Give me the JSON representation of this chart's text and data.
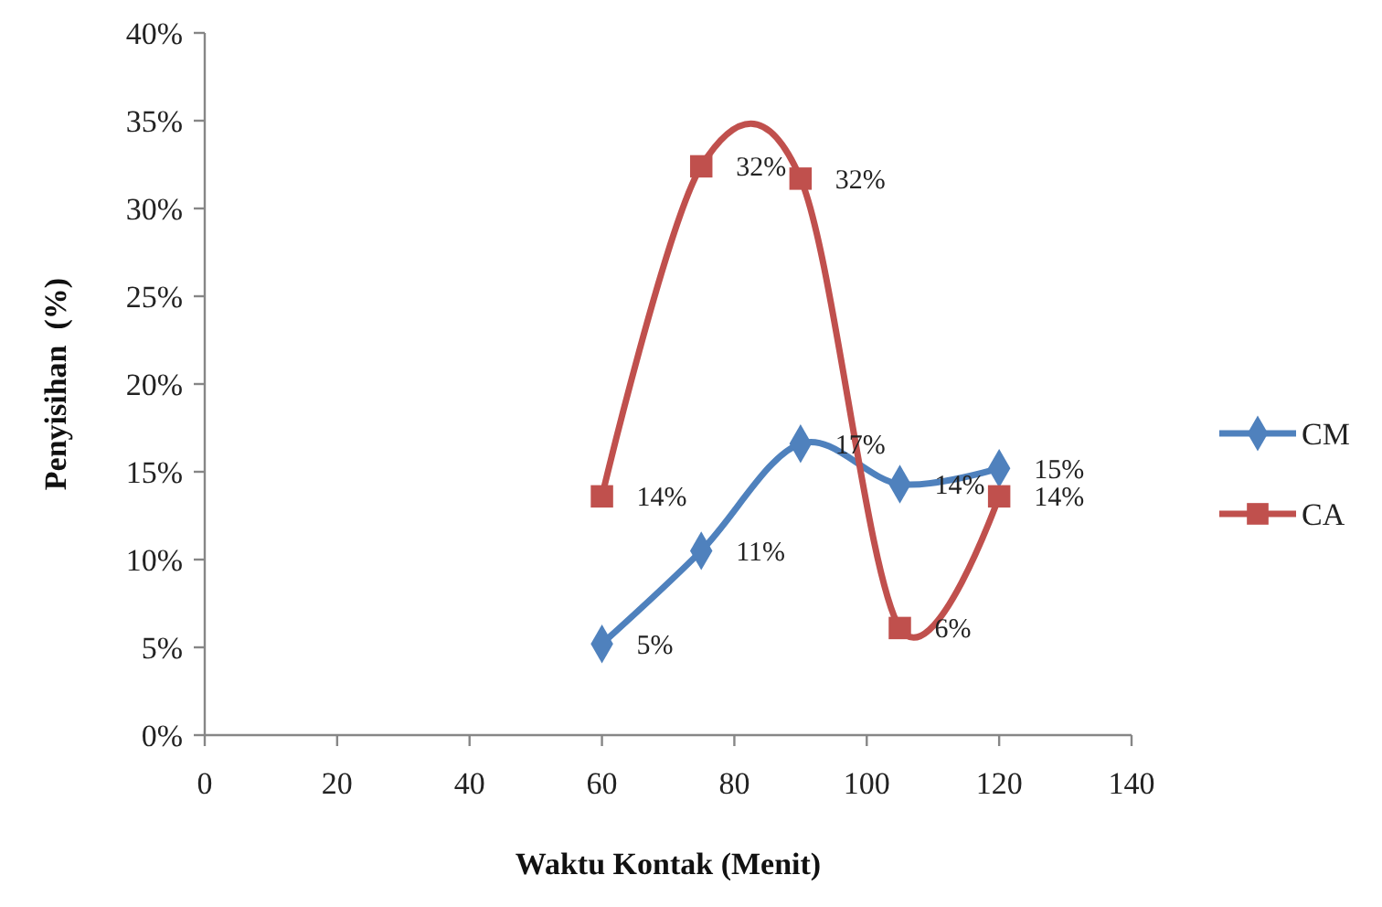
{
  "chart_data": {
    "type": "line",
    "xlabel": "Waktu Kontak (Menit)",
    "ylabel": "Penyisihan  (%)",
    "xlim": [
      0,
      140
    ],
    "xticks": [
      0,
      20,
      40,
      60,
      80,
      100,
      120,
      140
    ],
    "ylim": [
      0,
      40
    ],
    "yticks": [
      {
        "value": 0,
        "label": "0%"
      },
      {
        "value": 5,
        "label": "5%"
      },
      {
        "value": 10,
        "label": "10%"
      },
      {
        "value": 15,
        "label": "15%"
      },
      {
        "value": 20,
        "label": "20%"
      },
      {
        "value": 25,
        "label": "25%"
      },
      {
        "value": 30,
        "label": "30%"
      },
      {
        "value": 35,
        "label": "35%"
      },
      {
        "value": 40,
        "label": "40%"
      }
    ],
    "x": [
      60,
      75,
      90,
      105,
      120
    ],
    "legend": "right",
    "series": [
      {
        "name": "CM",
        "color": "#4f81bd",
        "marker": "diamond",
        "values": [
          5.2,
          10.5,
          16.6,
          14.3,
          15.2
        ],
        "value_labels": [
          "5%",
          "11%",
          "17%",
          "14%",
          "15%"
        ]
      },
      {
        "name": "CA",
        "color": "#c0504d",
        "marker": "square",
        "values": [
          13.6,
          32.4,
          31.7,
          6.1,
          13.6
        ],
        "value_labels": [
          "14%",
          "32%",
          "32%",
          "6%",
          "14%"
        ]
      }
    ]
  }
}
